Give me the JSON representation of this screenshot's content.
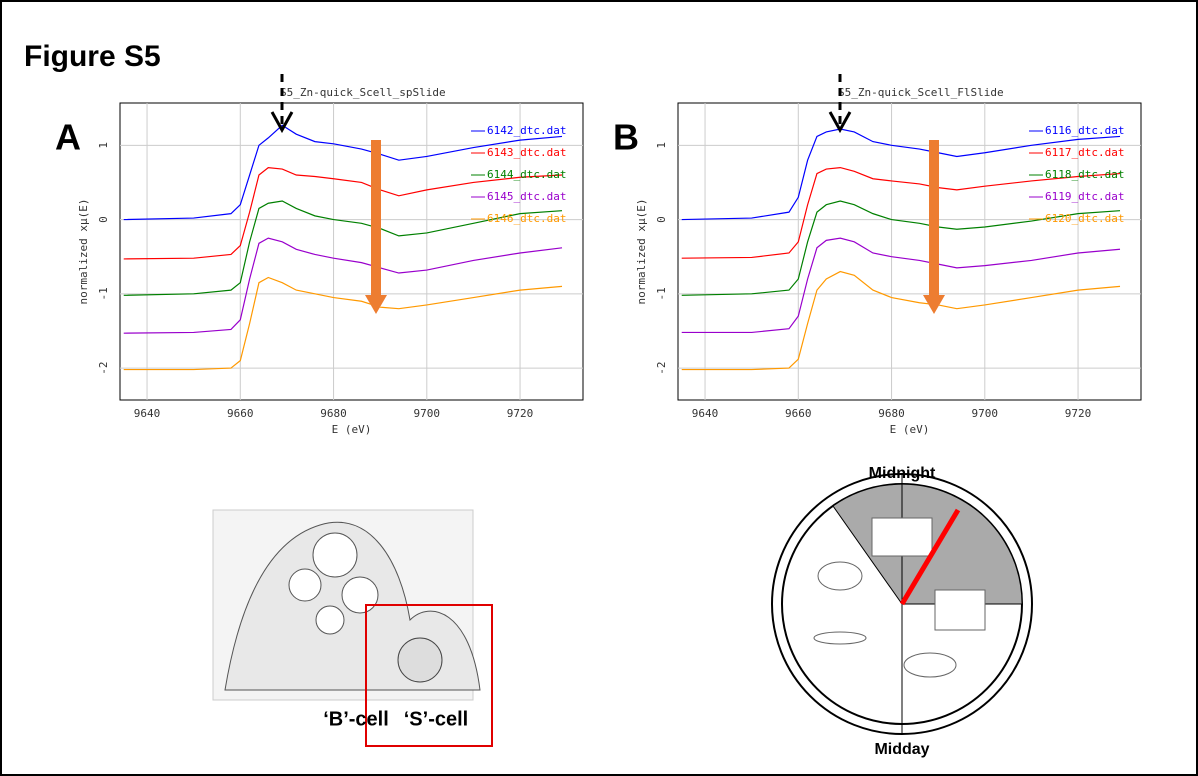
{
  "figure_title": "Figure S5",
  "chart_data": [
    {
      "type": "line",
      "panel_label": "A",
      "title": "S5_Zn-quick_Scell_spSlide",
      "x_label": "E (eV)",
      "y_label": "normalized xμ(E)",
      "x": [
        9635,
        9650,
        9658,
        9660,
        9662,
        9664,
        9666,
        9669,
        9672,
        9676,
        9680,
        9686,
        9690,
        9694,
        9700,
        9710,
        9720,
        9729
      ],
      "xlim": [
        9634.2,
        9733.5
      ],
      "xticks": [
        9640,
        9660,
        9680,
        9700,
        9720
      ],
      "ylim": [
        -2.43,
        1.57
      ],
      "yticks": [
        -2,
        -1,
        0,
        1
      ],
      "grid": true,
      "legend": "upper right",
      "series": [
        {
          "name": "6142_dtc.dat",
          "color": "#0000ff",
          "values": [
            0,
            0.02,
            0.08,
            0.2,
            0.6,
            1.0,
            1.1,
            1.27,
            1.15,
            1.05,
            1.02,
            0.95,
            0.88,
            0.8,
            0.85,
            0.97,
            1.07,
            1.12
          ]
        },
        {
          "name": "6143_dtc.dat",
          "color": "#ff0000",
          "values": [
            -0.53,
            -0.52,
            -0.47,
            -0.35,
            0.1,
            0.6,
            0.7,
            0.68,
            0.6,
            0.58,
            0.55,
            0.5,
            0.4,
            0.32,
            0.4,
            0.5,
            0.57,
            0.6
          ]
        },
        {
          "name": "6144_dtc.dat",
          "color": "#008000",
          "values": [
            -1.02,
            -1.0,
            -0.95,
            -0.85,
            -0.3,
            0.15,
            0.22,
            0.25,
            0.15,
            0.05,
            0.0,
            -0.05,
            -0.12,
            -0.22,
            -0.18,
            -0.05,
            0.08,
            0.12
          ]
        },
        {
          "name": "6145_dtc.dat",
          "color": "#9900cc",
          "values": [
            -1.53,
            -1.52,
            -1.48,
            -1.35,
            -0.8,
            -0.32,
            -0.25,
            -0.3,
            -0.4,
            -0.47,
            -0.52,
            -0.58,
            -0.65,
            -0.72,
            -0.68,
            -0.55,
            -0.45,
            -0.38
          ]
        },
        {
          "name": "6146_dtc.dat",
          "color": "#ff9900",
          "values": [
            -2.02,
            -2.02,
            -2.0,
            -1.9,
            -1.4,
            -0.85,
            -0.78,
            -0.85,
            -0.95,
            -1.0,
            -1.05,
            -1.1,
            -1.18,
            -1.2,
            -1.15,
            -1.05,
            -0.95,
            -0.9
          ]
        }
      ]
    },
    {
      "type": "line",
      "panel_label": "B",
      "title": "S5_Zn-quick_Scell_FlSlide",
      "x_label": "E (eV)",
      "y_label": "normalized xμ(E)",
      "x": [
        9635,
        9650,
        9658,
        9660,
        9662,
        9664,
        9666,
        9669,
        9672,
        9676,
        9680,
        9686,
        9690,
        9694,
        9700,
        9710,
        9720,
        9729
      ],
      "xlim": [
        9634.2,
        9733.5
      ],
      "xticks": [
        9640,
        9660,
        9680,
        9700,
        9720
      ],
      "ylim": [
        -2.43,
        1.57
      ],
      "yticks": [
        -2,
        -1,
        0,
        1
      ],
      "grid": true,
      "legend": "upper right",
      "series": [
        {
          "name": "6116_dtc.dat",
          "color": "#0000ff",
          "values": [
            0,
            0.02,
            0.1,
            0.3,
            0.8,
            1.12,
            1.18,
            1.22,
            1.18,
            1.05,
            1.0,
            0.95,
            0.9,
            0.85,
            0.9,
            1.0,
            1.08,
            1.12
          ]
        },
        {
          "name": "6117_dtc.dat",
          "color": "#ff0000",
          "values": [
            -0.52,
            -0.51,
            -0.45,
            -0.3,
            0.2,
            0.62,
            0.68,
            0.7,
            0.65,
            0.55,
            0.52,
            0.48,
            0.43,
            0.4,
            0.45,
            0.52,
            0.58,
            0.62
          ]
        },
        {
          "name": "6118_dtc.dat",
          "color": "#008000",
          "values": [
            -1.02,
            -1.0,
            -0.95,
            -0.8,
            -0.3,
            0.1,
            0.2,
            0.25,
            0.2,
            0.08,
            0.0,
            -0.05,
            -0.1,
            -0.13,
            -0.1,
            -0.02,
            0.08,
            0.12
          ]
        },
        {
          "name": "6119_dtc.dat",
          "color": "#9900cc",
          "values": [
            -1.52,
            -1.52,
            -1.47,
            -1.3,
            -0.8,
            -0.38,
            -0.28,
            -0.25,
            -0.3,
            -0.45,
            -0.5,
            -0.55,
            -0.6,
            -0.65,
            -0.62,
            -0.55,
            -0.45,
            -0.4
          ]
        },
        {
          "name": "6120_dtc.dat",
          "color": "#ff9900",
          "values": [
            -2.02,
            -2.02,
            -2.0,
            -1.88,
            -1.4,
            -0.95,
            -0.8,
            -0.7,
            -0.75,
            -0.95,
            -1.05,
            -1.12,
            -1.15,
            -1.2,
            -1.15,
            -1.05,
            -0.95,
            -0.9
          ]
        }
      ]
    }
  ],
  "cell_diagram": {
    "labels": [
      "‘B’-cell",
      "‘S’-cell"
    ]
  },
  "clock_diagram": {
    "top": "Midnight",
    "bottom": "Midday"
  }
}
